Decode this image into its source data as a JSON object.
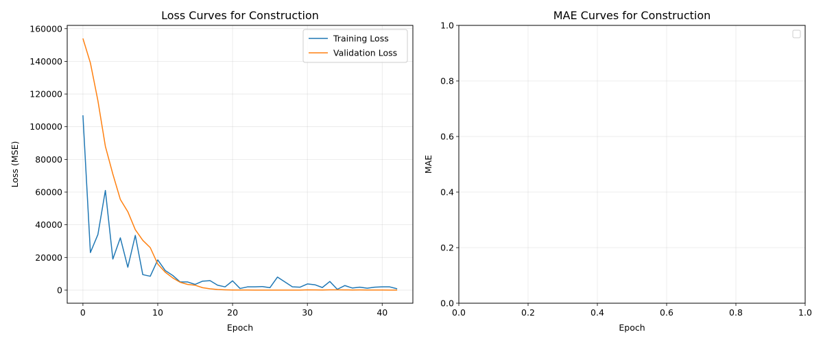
{
  "chart_data": [
    {
      "type": "line",
      "title": "Loss Curves for Construction",
      "xlabel": "Epoch",
      "ylabel": "Loss (MSE)",
      "xlim": [
        -2.1,
        44.1
      ],
      "ylim": [
        -8000,
        162000
      ],
      "xticks": [
        0,
        10,
        20,
        30,
        40
      ],
      "yticks": [
        0,
        20000,
        40000,
        60000,
        80000,
        100000,
        120000,
        140000,
        160000
      ],
      "grid": true,
      "legend": "top-right",
      "x": [
        0,
        1,
        2,
        3,
        4,
        5,
        6,
        7,
        8,
        9,
        10,
        11,
        12,
        13,
        14,
        15,
        16,
        17,
        18,
        19,
        20,
        21,
        22,
        23,
        24,
        25,
        26,
        27,
        28,
        29,
        30,
        31,
        32,
        33,
        34,
        35,
        36,
        37,
        38,
        39,
        40,
        41,
        42
      ],
      "series": [
        {
          "name": "Training Loss",
          "color": "#1f77b4",
          "values": [
            107000,
            23000,
            34000,
            61000,
            19000,
            32000,
            14000,
            33500,
            9500,
            8500,
            18500,
            12000,
            9000,
            5000,
            5000,
            3500,
            5500,
            5800,
            3000,
            2000,
            5700,
            1000,
            2000,
            2000,
            2200,
            1500,
            8000,
            5000,
            2000,
            1800,
            3800,
            3300,
            1600,
            5300,
            500,
            2800,
            1300,
            1800,
            1200,
            1800,
            2000,
            2000,
            800
          ]
        },
        {
          "name": "Validation Loss",
          "color": "#ff7f0e",
          "values": [
            154000,
            139000,
            116000,
            88000,
            71000,
            55500,
            48000,
            37000,
            30500,
            26000,
            16000,
            11000,
            7500,
            4800,
            3500,
            3000,
            1500,
            800,
            400,
            200,
            100,
            100,
            100,
            50,
            50,
            50,
            50,
            50,
            50,
            50,
            200,
            150,
            100,
            200,
            200,
            150,
            100,
            150,
            100,
            100,
            100,
            50,
            50
          ]
        }
      ]
    },
    {
      "type": "line",
      "title": "MAE Curves for Construction",
      "xlabel": "Epoch",
      "ylabel": "MAE",
      "xlim": [
        0,
        1
      ],
      "ylim": [
        0,
        1
      ],
      "xticks": [
        "0.0",
        "0.2",
        "0.4",
        "0.6",
        "0.8",
        "1.0"
      ],
      "yticks": [
        "0.0",
        "0.2",
        "0.4",
        "0.6",
        "0.8",
        "1.0"
      ],
      "grid": true,
      "legend": "top-right",
      "series": []
    }
  ]
}
